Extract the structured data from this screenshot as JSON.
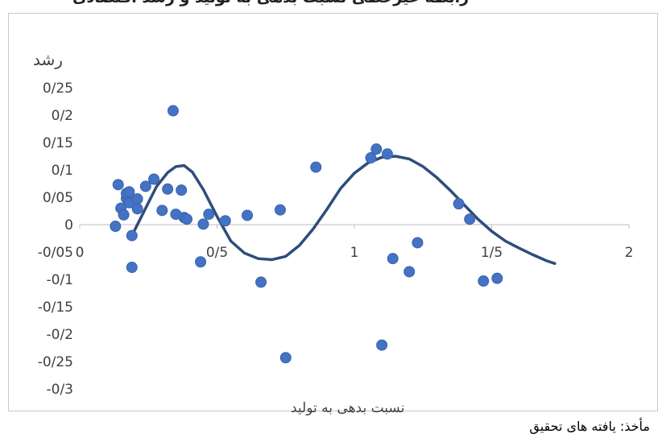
{
  "chart_data": {
    "type": "scatter",
    "ylabel": "رشد",
    "xlabel": "نسبت بدهی به تولید",
    "xlim": [
      0,
      2
    ],
    "ylim": [
      -0.3,
      0.25
    ],
    "x_ticks": [
      {
        "v": 0,
        "label": "0"
      },
      {
        "v": 0.5,
        "label": "0/5"
      },
      {
        "v": 1,
        "label": "1"
      },
      {
        "v": 1.5,
        "label": "1/5"
      },
      {
        "v": 2,
        "label": "2"
      }
    ],
    "y_ticks": [
      {
        "v": 0.25,
        "label": "0/25"
      },
      {
        "v": 0.2,
        "label": "0/2"
      },
      {
        "v": 0.15,
        "label": "0/15"
      },
      {
        "v": 0.1,
        "label": "0/1"
      },
      {
        "v": 0.05,
        "label": "0/05"
      },
      {
        "v": 0,
        "label": "0"
      },
      {
        "v": -0.05,
        "label": "-0/05"
      },
      {
        "v": -0.1,
        "label": "-0/1"
      },
      {
        "v": -0.15,
        "label": "-0/15"
      },
      {
        "v": -0.2,
        "label": "-0/2"
      },
      {
        "v": -0.25,
        "label": "-0/25"
      },
      {
        "v": -0.3,
        "label": "-0/3"
      }
    ],
    "points": [
      {
        "x": 0.13,
        "y": -0.003
      },
      {
        "x": 0.14,
        "y": 0.073
      },
      {
        "x": 0.15,
        "y": 0.03
      },
      {
        "x": 0.16,
        "y": 0.018
      },
      {
        "x": 0.17,
        "y": 0.048
      },
      {
        "x": 0.17,
        "y": 0.057
      },
      {
        "x": 0.18,
        "y": 0.06
      },
      {
        "x": 0.18,
        "y": 0.04
      },
      {
        "x": 0.19,
        "y": -0.02
      },
      {
        "x": 0.19,
        "y": -0.078
      },
      {
        "x": 0.21,
        "y": 0.047
      },
      {
        "x": 0.21,
        "y": 0.029
      },
      {
        "x": 0.24,
        "y": 0.07
      },
      {
        "x": 0.27,
        "y": 0.083
      },
      {
        "x": 0.3,
        "y": 0.026
      },
      {
        "x": 0.32,
        "y": 0.065
      },
      {
        "x": 0.34,
        "y": 0.208
      },
      {
        "x": 0.35,
        "y": 0.019
      },
      {
        "x": 0.37,
        "y": 0.063
      },
      {
        "x": 0.38,
        "y": 0.013
      },
      {
        "x": 0.39,
        "y": 0.01
      },
      {
        "x": 0.44,
        "y": -0.068
      },
      {
        "x": 0.45,
        "y": 0.001
      },
      {
        "x": 0.47,
        "y": 0.019
      },
      {
        "x": 0.53,
        "y": 0.007
      },
      {
        "x": 0.61,
        "y": 0.017
      },
      {
        "x": 0.66,
        "y": -0.105
      },
      {
        "x": 0.73,
        "y": 0.027
      },
      {
        "x": 0.75,
        "y": -0.243
      },
      {
        "x": 0.86,
        "y": 0.105
      },
      {
        "x": 1.06,
        "y": 0.122
      },
      {
        "x": 1.08,
        "y": 0.138
      },
      {
        "x": 1.1,
        "y": -0.22
      },
      {
        "x": 1.12,
        "y": 0.129
      },
      {
        "x": 1.14,
        "y": -0.062
      },
      {
        "x": 1.2,
        "y": -0.086
      },
      {
        "x": 1.23,
        "y": -0.033
      },
      {
        "x": 1.38,
        "y": 0.038
      },
      {
        "x": 1.42,
        "y": 0.01
      },
      {
        "x": 1.47,
        "y": -0.103
      },
      {
        "x": 1.52,
        "y": -0.098
      }
    ],
    "trendline": {
      "color": "#2e4d7b",
      "points": [
        [
          0.2,
          -0.01
        ],
        [
          0.24,
          0.03
        ],
        [
          0.28,
          0.07
        ],
        [
          0.32,
          0.095
        ],
        [
          0.35,
          0.106
        ],
        [
          0.38,
          0.108
        ],
        [
          0.41,
          0.096
        ],
        [
          0.45,
          0.064
        ],
        [
          0.5,
          0.015
        ],
        [
          0.55,
          -0.03
        ],
        [
          0.6,
          -0.052
        ],
        [
          0.65,
          -0.062
        ],
        [
          0.7,
          -0.064
        ],
        [
          0.75,
          -0.058
        ],
        [
          0.8,
          -0.038
        ],
        [
          0.85,
          -0.008
        ],
        [
          0.9,
          0.028
        ],
        [
          0.95,
          0.066
        ],
        [
          1.0,
          0.094
        ],
        [
          1.05,
          0.113
        ],
        [
          1.1,
          0.123
        ],
        [
          1.15,
          0.125
        ],
        [
          1.2,
          0.12
        ],
        [
          1.25,
          0.106
        ],
        [
          1.3,
          0.086
        ],
        [
          1.35,
          0.062
        ],
        [
          1.4,
          0.036
        ],
        [
          1.45,
          0.01
        ],
        [
          1.5,
          -0.012
        ],
        [
          1.55,
          -0.03
        ],
        [
          1.6,
          -0.043
        ],
        [
          1.65,
          -0.055
        ],
        [
          1.7,
          -0.066
        ],
        [
          1.73,
          -0.071
        ]
      ]
    },
    "marker_color": "#4472c4",
    "grid": false
  },
  "title": "رابطه غیرخطی نسبت بدهی به تولید و رشد اقتصادی",
  "source": "مأخذ: یافته های تحقیق"
}
